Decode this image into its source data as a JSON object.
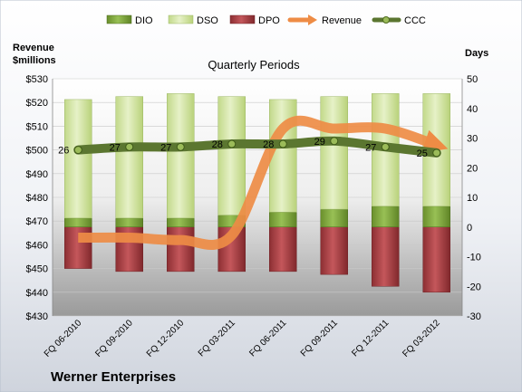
{
  "chart_data": {
    "type": "bar",
    "title": "Quarterly Periods",
    "company": "Werner Enterprises",
    "left_axis_label_line1": "Revenue",
    "left_axis_label_line2": "$millions",
    "right_axis_label": "Days",
    "categories": [
      "FQ 06-2010",
      "FQ 09-2010",
      "FQ 12-2010",
      "FQ 03-2011",
      "FQ 06-2011",
      "FQ 09-2011",
      "FQ 12-2011",
      "FQ 03-2012"
    ],
    "left_axis": {
      "min": 430,
      "max": 530,
      "step": 10,
      "tick_labels": [
        "$430",
        "$440",
        "$450",
        "$460",
        "$470",
        "$480",
        "$490",
        "$500",
        "$510",
        "$520",
        "$530"
      ]
    },
    "right_axis": {
      "min": -30,
      "max": 50,
      "step": 10,
      "tick_labels": [
        "-30",
        "-20",
        "-10",
        "0",
        "10",
        "20",
        "30",
        "40",
        "50"
      ]
    },
    "legend_position": "top",
    "series": [
      {
        "name": "DIO",
        "kind": "stacked-bar",
        "axis": "days",
        "color": "#7ca23a",
        "values": [
          3,
          3,
          3,
          4,
          5,
          6,
          7,
          7
        ]
      },
      {
        "name": "DSO",
        "kind": "stacked-bar",
        "axis": "days",
        "color": "#d6e8a9",
        "values": [
          40,
          41,
          42,
          40,
          38,
          38,
          38,
          38
        ]
      },
      {
        "name": "DPO",
        "kind": "negative-bar",
        "axis": "days",
        "color": "#b0464a",
        "values": [
          -14,
          -15,
          -15,
          -15,
          -15,
          -16,
          -20,
          -22
        ]
      },
      {
        "name": "Revenue",
        "kind": "line",
        "axis": "revenue",
        "color": "#ee8c45",
        "values": [
          463,
          463,
          462,
          464,
          509,
          509,
          509,
          502
        ]
      },
      {
        "name": "CCC",
        "kind": "line",
        "axis": "days",
        "color": "#5b7630",
        "values": [
          26,
          27,
          27,
          28,
          28,
          29,
          27,
          25
        ]
      }
    ],
    "ccc_labels": [
      "26",
      "27",
      "27",
      "28",
      "28",
      "29",
      "27",
      "25"
    ]
  }
}
